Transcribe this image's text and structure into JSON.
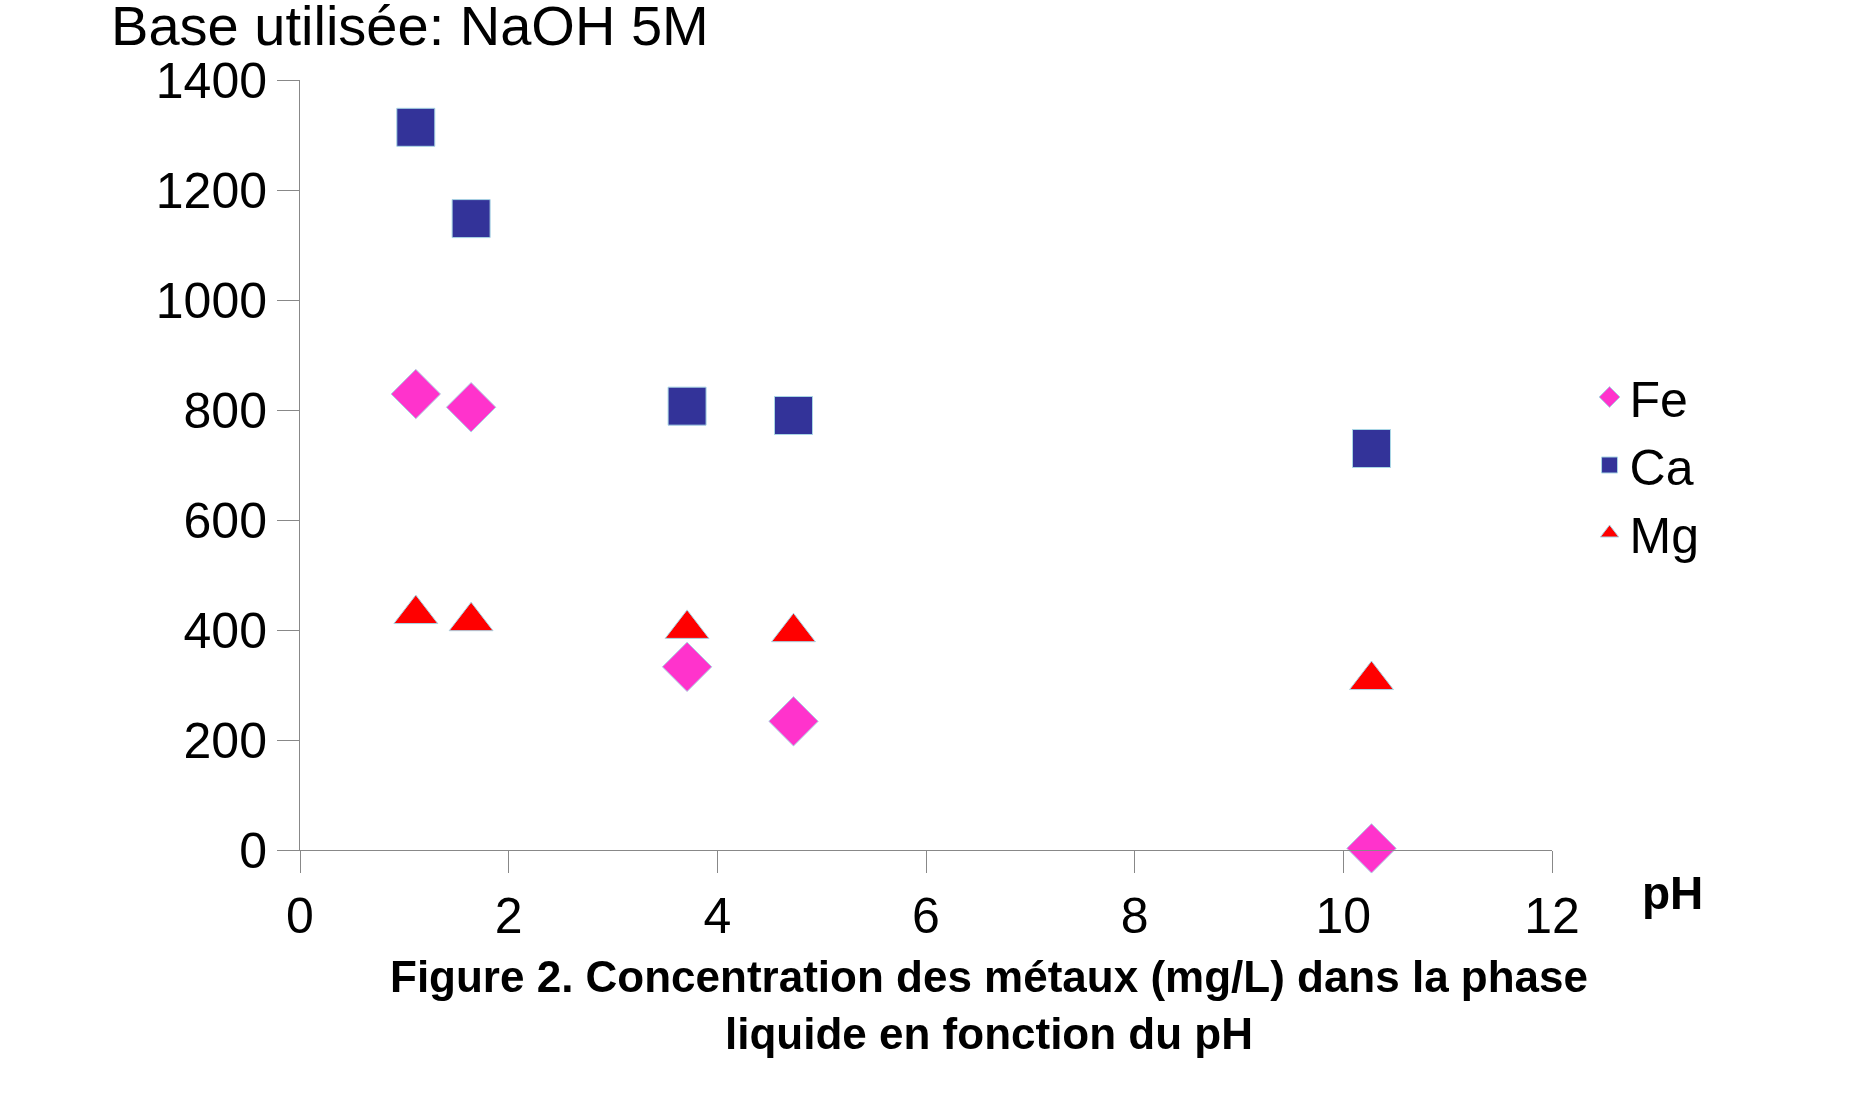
{
  "chart_data": {
    "type": "scatter",
    "title": "Base utilisée: NaOH 5M",
    "xlabel": "pH",
    "x": [
      1.11,
      1.64,
      3.71,
      4.73,
      10.27
    ],
    "series": [
      {
        "name": "Fe",
        "color": "#ff33cc",
        "marker": "diamond",
        "values": [
          829,
          805,
          333,
          234,
          3
        ]
      },
      {
        "name": "Ca",
        "color": "#333399",
        "marker": "square",
        "values": [
          1314,
          1148,
          807,
          790,
          730
        ]
      },
      {
        "name": "Mg",
        "color": "#ff0000",
        "marker": "triangle",
        "values": [
          429,
          416,
          402,
          396,
          309
        ]
      }
    ],
    "xlim": [
      0,
      12
    ],
    "xticks": [
      0,
      2,
      4,
      6,
      8,
      10,
      12
    ],
    "ylim": [
      0,
      1400
    ],
    "yticks": [
      0,
      200,
      400,
      600,
      800,
      1000,
      1200,
      1400
    ],
    "legend": "right",
    "annotations": [
      "Figure 2. Concentration des métaux (mg/L) dans la phase\nliquide en fonction du pH"
    ]
  }
}
